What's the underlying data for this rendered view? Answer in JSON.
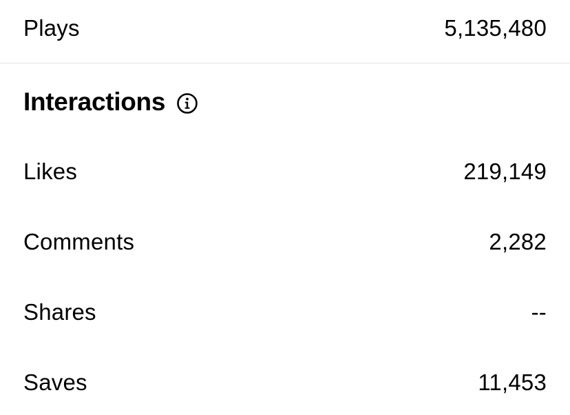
{
  "plays": {
    "label": "Plays",
    "value": "5,135,480"
  },
  "interactions": {
    "title": "Interactions",
    "info_icon": "info-icon",
    "rows": [
      {
        "label": "Likes",
        "value": "219,149"
      },
      {
        "label": "Comments",
        "value": "2,282"
      },
      {
        "label": "Shares",
        "value": "--"
      },
      {
        "label": "Saves",
        "value": "11,453"
      }
    ]
  }
}
